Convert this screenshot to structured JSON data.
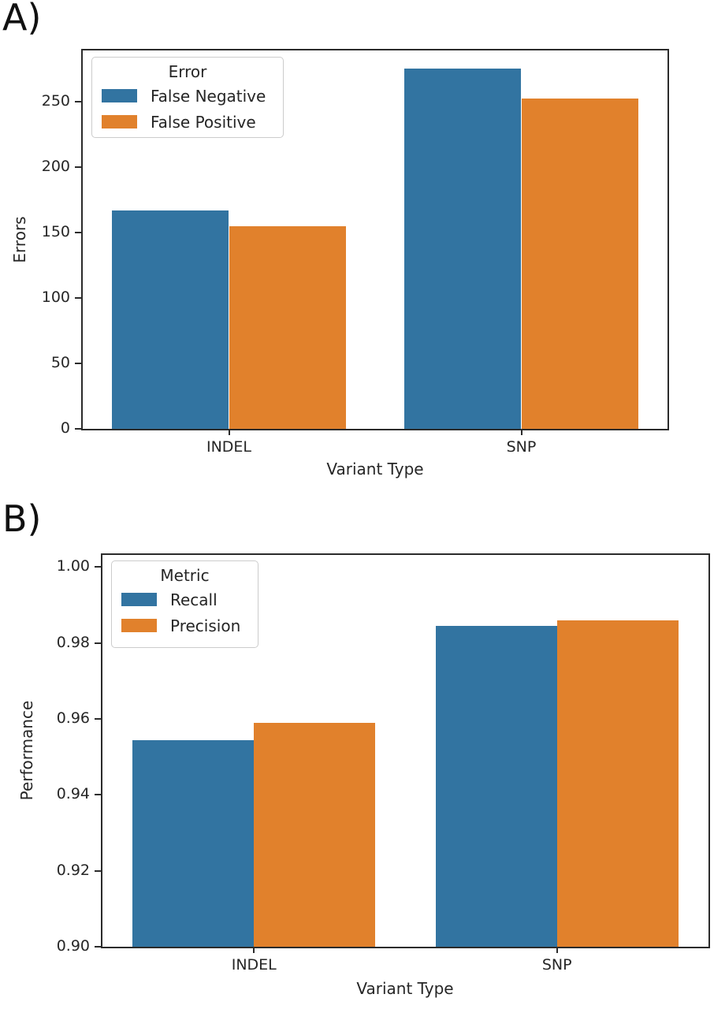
{
  "figure": {
    "background": "#ffffff"
  },
  "colors": {
    "series_blue": "#3274a1",
    "series_orange": "#e1812c",
    "axis": "#2b2b2b",
    "text": "#262626",
    "legend_border": "#cccccc"
  },
  "chart_data": [
    {
      "panel_label": "A)",
      "type": "bar",
      "title": "",
      "xlabel": "Variant Type",
      "ylabel": "Errors",
      "categories": [
        "INDEL",
        "SNP"
      ],
      "series": [
        {
          "name": "False Negative",
          "color": "#3274a1",
          "values": [
            167,
            275
          ]
        },
        {
          "name": "False Positive",
          "color": "#e1812c",
          "values": [
            155,
            252
          ]
        }
      ],
      "legend": {
        "title": "Error",
        "position": "upper left"
      },
      "ylim": [
        0,
        289
      ],
      "yticks": [
        0,
        50,
        100,
        150,
        200,
        250
      ],
      "ytick_labels": [
        "0",
        "50",
        "100",
        "150",
        "200",
        "250"
      ],
      "grid": false,
      "bar_group_width": 0.8
    },
    {
      "panel_label": "B)",
      "type": "bar",
      "title": "",
      "xlabel": "Variant Type",
      "ylabel": "Performance",
      "categories": [
        "INDEL",
        "SNP"
      ],
      "series": [
        {
          "name": "Recall",
          "color": "#3274a1",
          "values": [
            0.9545,
            0.9845
          ]
        },
        {
          "name": "Precision",
          "color": "#e1812c",
          "values": [
            0.959,
            0.986
          ]
        }
      ],
      "legend": {
        "title": "Metric",
        "position": "upper left"
      },
      "ylim": [
        0.9,
        1.0032
      ],
      "yticks": [
        0.9,
        0.92,
        0.94,
        0.96,
        0.98,
        1.0
      ],
      "ytick_labels": [
        "0.90",
        "0.92",
        "0.94",
        "0.96",
        "0.98",
        "1.00"
      ],
      "grid": false,
      "bar_group_width": 0.8
    }
  ]
}
